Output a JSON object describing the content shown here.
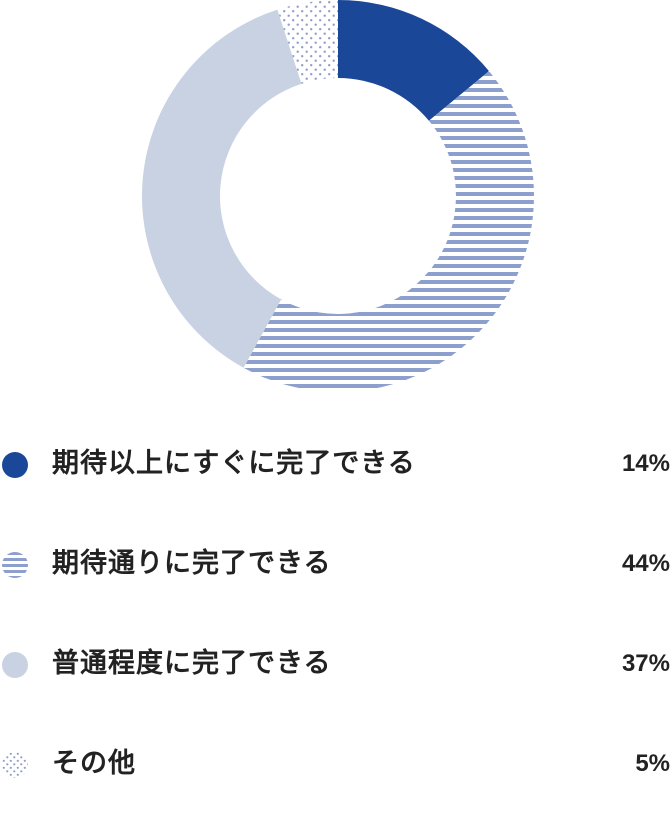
{
  "chart_data": {
    "type": "pie",
    "title": "",
    "categories": [
      "期待以上にすぐに完了できる",
      "期待通りに完了できる",
      "普通程度に完了できる",
      "その他"
    ],
    "values": [
      14,
      44,
      37,
      5
    ],
    "value_labels": [
      "14%",
      "44%",
      "37%",
      "5%"
    ],
    "unit": "%",
    "donut": true,
    "legend_position": "bottom",
    "series_styles": [
      {
        "pattern": "solid",
        "color": "#1b4799"
      },
      {
        "pattern": "horizontal-stripes",
        "color": "#8d9fcc",
        "bg": "#ffffff"
      },
      {
        "pattern": "solid",
        "color": "#c8d2e3"
      },
      {
        "pattern": "dots",
        "color": "#8f9fc8",
        "bg": "#ffffff"
      }
    ]
  }
}
